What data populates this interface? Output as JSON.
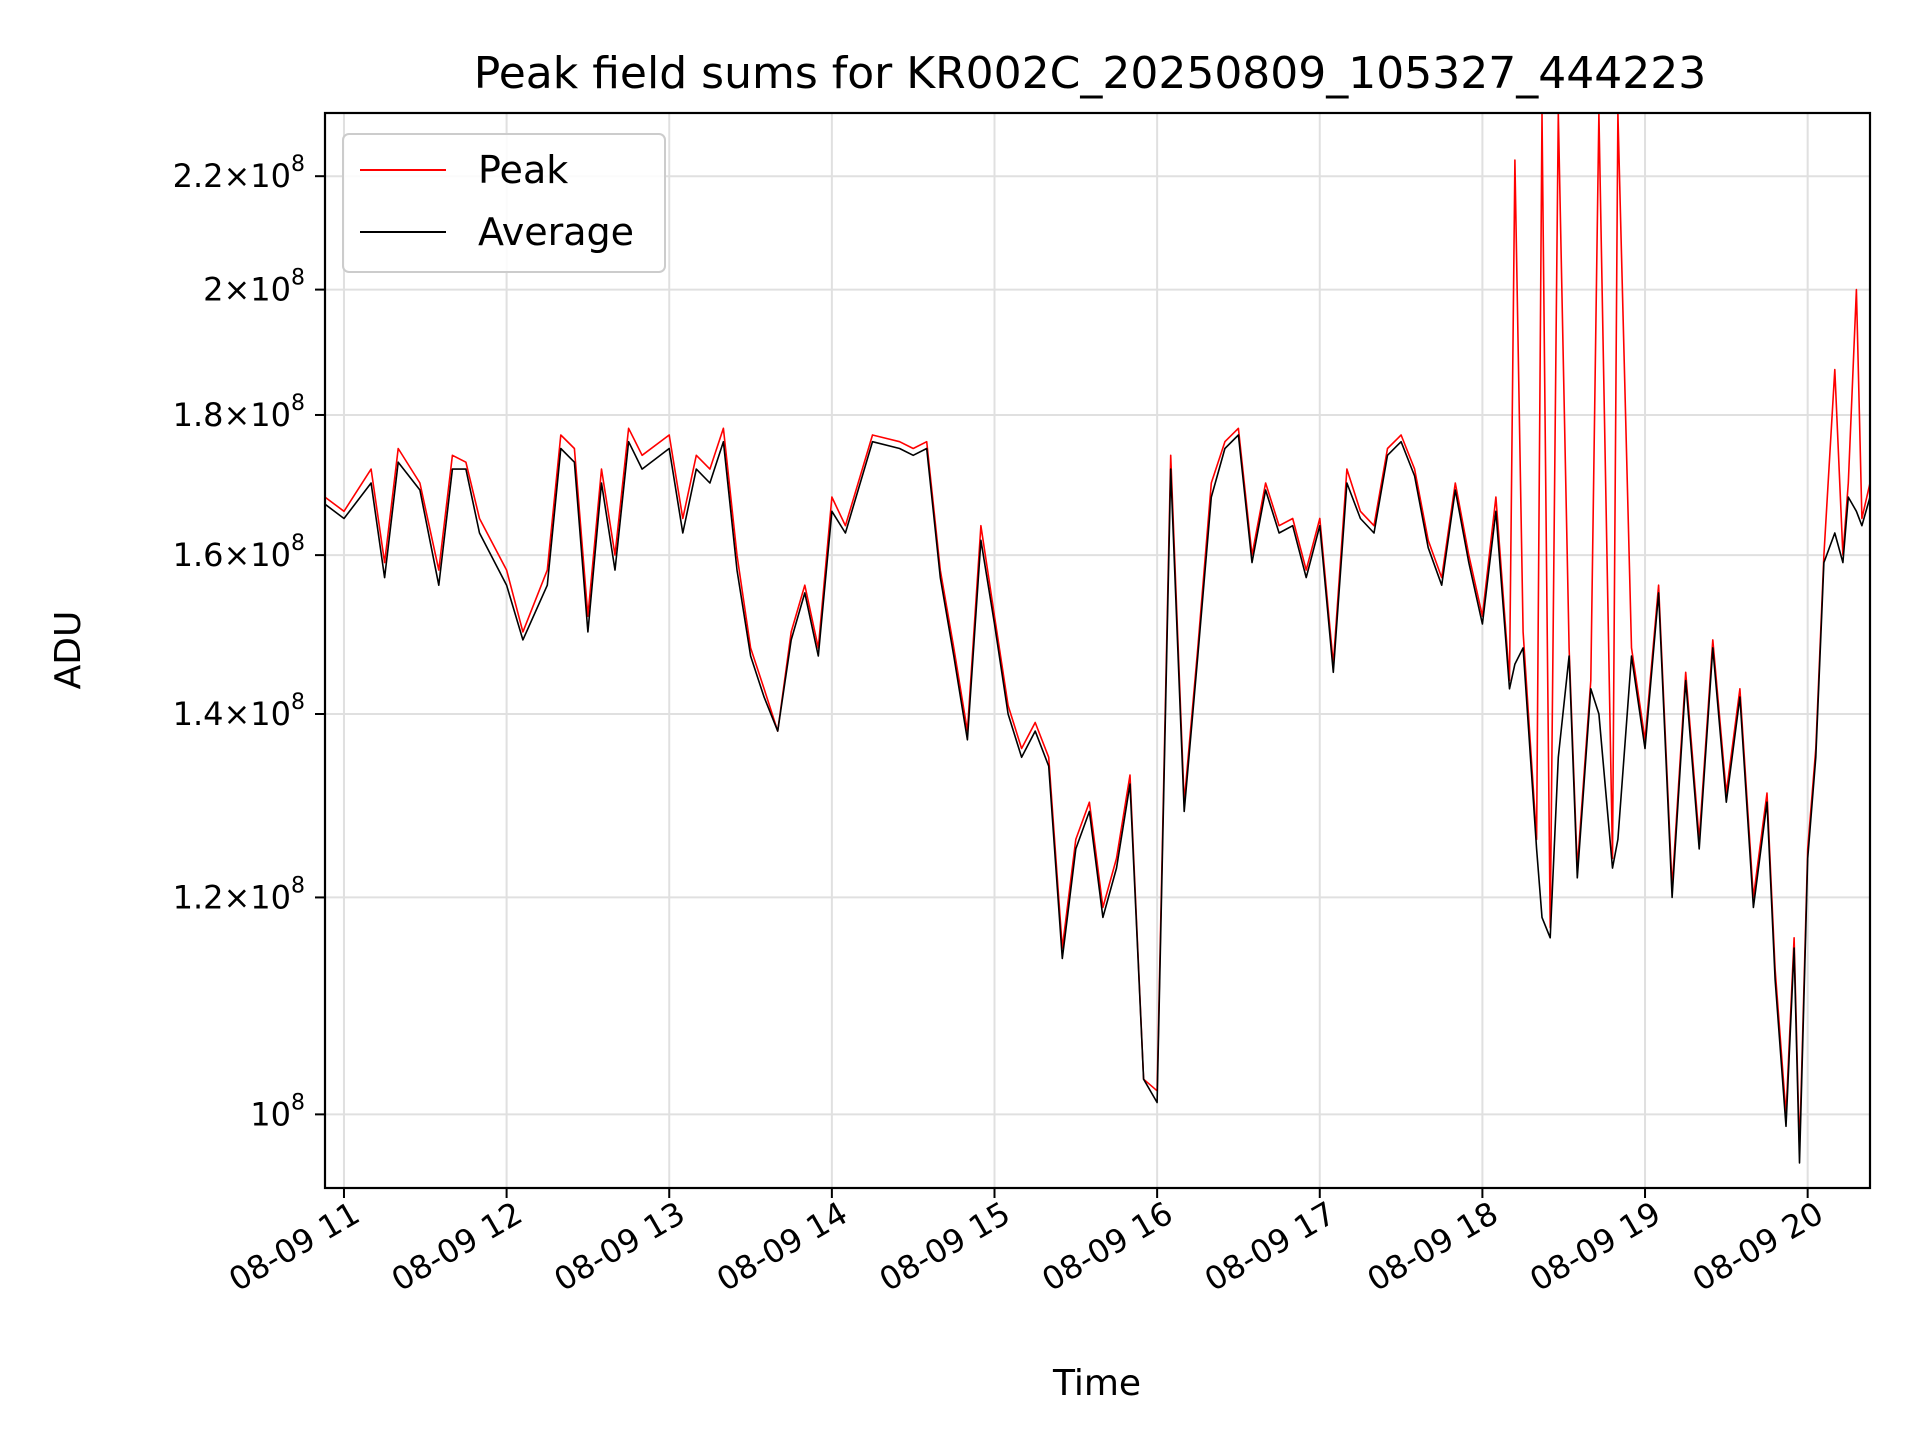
{
  "chart_data": {
    "type": "line",
    "title": "Peak field sums for KR002C_20250809_105327_444223",
    "xlabel": "Time",
    "ylabel": "ADU",
    "y_scale": "log",
    "ylim": [
      94000000,
      232000000
    ],
    "xlim": [
      "2025-08-09 10:53",
      "2025-08-09 20:23"
    ],
    "grid": true,
    "legend_position": "top-left",
    "x_ticks": [
      {
        "x": "2025-08-09 11:00",
        "label": "08-09 11"
      },
      {
        "x": "2025-08-09 12:00",
        "label": "08-09 12"
      },
      {
        "x": "2025-08-09 13:00",
        "label": "08-09 13"
      },
      {
        "x": "2025-08-09 14:00",
        "label": "08-09 14"
      },
      {
        "x": "2025-08-09 15:00",
        "label": "08-09 15"
      },
      {
        "x": "2025-08-09 16:00",
        "label": "08-09 16"
      },
      {
        "x": "2025-08-09 17:00",
        "label": "08-09 17"
      },
      {
        "x": "2025-08-09 18:00",
        "label": "08-09 18"
      },
      {
        "x": "2025-08-09 19:00",
        "label": "08-09 19"
      },
      {
        "x": "2025-08-09 20:00",
        "label": "08-09 20"
      }
    ],
    "y_ticks": [
      {
        "value": 100000000,
        "mantissa": "",
        "exp": "8"
      },
      {
        "value": 120000000,
        "mantissa": "1.2",
        "exp": "8"
      },
      {
        "value": 140000000,
        "mantissa": "1.4",
        "exp": "8"
      },
      {
        "value": 160000000,
        "mantissa": "1.6",
        "exp": "8"
      },
      {
        "value": 180000000,
        "mantissa": "1.8",
        "exp": "8"
      },
      {
        "value": 200000000,
        "mantissa": "2",
        "exp": "8"
      },
      {
        "value": 220000000,
        "mantissa": "2.2",
        "exp": "8"
      }
    ],
    "series": [
      {
        "name": "Peak",
        "color": "#ff0000",
        "x": [
          "2025-08-09 10:53",
          "2025-08-09 11:00",
          "2025-08-09 11:10",
          "2025-08-09 11:15",
          "2025-08-09 11:20",
          "2025-08-09 11:28",
          "2025-08-09 11:35",
          "2025-08-09 11:40",
          "2025-08-09 11:45",
          "2025-08-09 11:50",
          "2025-08-09 12:00",
          "2025-08-09 12:06",
          "2025-08-09 12:15",
          "2025-08-09 12:20",
          "2025-08-09 12:25",
          "2025-08-09 12:30",
          "2025-08-09 12:35",
          "2025-08-09 12:40",
          "2025-08-09 12:45",
          "2025-08-09 12:50",
          "2025-08-09 13:00",
          "2025-08-09 13:05",
          "2025-08-09 13:10",
          "2025-08-09 13:15",
          "2025-08-09 13:20",
          "2025-08-09 13:25",
          "2025-08-09 13:30",
          "2025-08-09 13:35",
          "2025-08-09 13:40",
          "2025-08-09 13:45",
          "2025-08-09 13:50",
          "2025-08-09 13:55",
          "2025-08-09 14:00",
          "2025-08-09 14:05",
          "2025-08-09 14:15",
          "2025-08-09 14:25",
          "2025-08-09 14:30",
          "2025-08-09 14:35",
          "2025-08-09 14:40",
          "2025-08-09 14:45",
          "2025-08-09 14:50",
          "2025-08-09 14:55",
          "2025-08-09 15:00",
          "2025-08-09 15:05",
          "2025-08-09 15:10",
          "2025-08-09 15:15",
          "2025-08-09 15:20",
          "2025-08-09 15:25",
          "2025-08-09 15:30",
          "2025-08-09 15:35",
          "2025-08-09 15:40",
          "2025-08-09 15:45",
          "2025-08-09 15:50",
          "2025-08-09 15:55",
          "2025-08-09 16:00",
          "2025-08-09 16:05",
          "2025-08-09 16:10",
          "2025-08-09 16:15",
          "2025-08-09 16:20",
          "2025-08-09 16:25",
          "2025-08-09 16:30",
          "2025-08-09 16:35",
          "2025-08-09 16:40",
          "2025-08-09 16:45",
          "2025-08-09 16:50",
          "2025-08-09 16:55",
          "2025-08-09 17:00",
          "2025-08-09 17:05",
          "2025-08-09 17:10",
          "2025-08-09 17:15",
          "2025-08-09 17:20",
          "2025-08-09 17:25",
          "2025-08-09 17:30",
          "2025-08-09 17:35",
          "2025-08-09 17:40",
          "2025-08-09 17:45",
          "2025-08-09 17:50",
          "2025-08-09 17:55",
          "2025-08-09 18:00",
          "2025-08-09 18:05",
          "2025-08-09 18:10",
          "2025-08-09 18:12",
          "2025-08-09 18:15",
          "2025-08-09 18:20",
          "2025-08-09 18:22",
          "2025-08-09 18:25",
          "2025-08-09 18:28",
          "2025-08-09 18:32",
          "2025-08-09 18:35",
          "2025-08-09 18:40",
          "2025-08-09 18:43",
          "2025-08-09 18:48",
          "2025-08-09 18:50",
          "2025-08-09 18:55",
          "2025-08-09 19:00",
          "2025-08-09 19:05",
          "2025-08-09 19:10",
          "2025-08-09 19:15",
          "2025-08-09 19:20",
          "2025-08-09 19:25",
          "2025-08-09 19:30",
          "2025-08-09 19:35",
          "2025-08-09 19:40",
          "2025-08-09 19:45",
          "2025-08-09 19:48",
          "2025-08-09 19:52",
          "2025-08-09 19:55",
          "2025-08-09 19:57",
          "2025-08-09 20:00",
          "2025-08-09 20:03",
          "2025-08-09 20:06",
          "2025-08-09 20:10",
          "2025-08-09 20:13",
          "2025-08-09 20:15",
          "2025-08-09 20:18",
          "2025-08-09 20:20",
          "2025-08-09 20:23"
        ],
        "values": [
          168000000,
          166000000,
          172000000,
          159000000,
          175000000,
          170000000,
          158000000,
          174000000,
          173000000,
          165000000,
          158000000,
          150000000,
          158000000,
          177000000,
          175000000,
          152000000,
          172000000,
          160000000,
          178000000,
          174000000,
          177000000,
          165000000,
          174000000,
          172000000,
          178000000,
          160000000,
          148000000,
          143000000,
          138000000,
          150000000,
          156000000,
          148000000,
          168000000,
          164000000,
          177000000,
          176000000,
          175000000,
          176000000,
          158000000,
          148000000,
          138000000,
          164000000,
          152000000,
          141000000,
          136000000,
          139000000,
          135000000,
          115000000,
          126000000,
          130000000,
          119000000,
          124000000,
          133000000,
          103000000,
          102000000,
          174000000,
          130000000,
          148000000,
          170000000,
          176000000,
          178000000,
          160000000,
          170000000,
          164000000,
          165000000,
          158000000,
          165000000,
          146000000,
          172000000,
          166000000,
          164000000,
          175000000,
          177000000,
          172000000,
          162000000,
          157000000,
          170000000,
          160000000,
          152000000,
          168000000,
          144000000,
          223000000,
          150000000,
          126000000,
          232000000,
          117000000,
          232000000,
          148000000,
          123000000,
          144000000,
          232000000,
          124000000,
          232000000,
          148000000,
          137000000,
          156000000,
          121000000,
          145000000,
          126000000,
          149000000,
          131000000,
          143000000,
          120000000,
          131000000,
          113000000,
          100000000,
          116000000,
          97000000,
          125000000,
          136000000,
          160000000,
          187000000,
          160000000,
          170000000,
          200000000,
          165000000,
          170000000
        ]
      },
      {
        "name": "Average",
        "color": "#000000",
        "x": [
          "2025-08-09 10:53",
          "2025-08-09 11:00",
          "2025-08-09 11:10",
          "2025-08-09 11:15",
          "2025-08-09 11:20",
          "2025-08-09 11:28",
          "2025-08-09 11:35",
          "2025-08-09 11:40",
          "2025-08-09 11:45",
          "2025-08-09 11:50",
          "2025-08-09 12:00",
          "2025-08-09 12:06",
          "2025-08-09 12:15",
          "2025-08-09 12:20",
          "2025-08-09 12:25",
          "2025-08-09 12:30",
          "2025-08-09 12:35",
          "2025-08-09 12:40",
          "2025-08-09 12:45",
          "2025-08-09 12:50",
          "2025-08-09 13:00",
          "2025-08-09 13:05",
          "2025-08-09 13:10",
          "2025-08-09 13:15",
          "2025-08-09 13:20",
          "2025-08-09 13:25",
          "2025-08-09 13:30",
          "2025-08-09 13:35",
          "2025-08-09 13:40",
          "2025-08-09 13:45",
          "2025-08-09 13:50",
          "2025-08-09 13:55",
          "2025-08-09 14:00",
          "2025-08-09 14:05",
          "2025-08-09 14:15",
          "2025-08-09 14:25",
          "2025-08-09 14:30",
          "2025-08-09 14:35",
          "2025-08-09 14:40",
          "2025-08-09 14:45",
          "2025-08-09 14:50",
          "2025-08-09 14:55",
          "2025-08-09 15:00",
          "2025-08-09 15:05",
          "2025-08-09 15:10",
          "2025-08-09 15:15",
          "2025-08-09 15:20",
          "2025-08-09 15:25",
          "2025-08-09 15:30",
          "2025-08-09 15:35",
          "2025-08-09 15:40",
          "2025-08-09 15:45",
          "2025-08-09 15:50",
          "2025-08-09 15:55",
          "2025-08-09 16:00",
          "2025-08-09 16:05",
          "2025-08-09 16:10",
          "2025-08-09 16:15",
          "2025-08-09 16:20",
          "2025-08-09 16:25",
          "2025-08-09 16:30",
          "2025-08-09 16:35",
          "2025-08-09 16:40",
          "2025-08-09 16:45",
          "2025-08-09 16:50",
          "2025-08-09 16:55",
          "2025-08-09 17:00",
          "2025-08-09 17:05",
          "2025-08-09 17:10",
          "2025-08-09 17:15",
          "2025-08-09 17:20",
          "2025-08-09 17:25",
          "2025-08-09 17:30",
          "2025-08-09 17:35",
          "2025-08-09 17:40",
          "2025-08-09 17:45",
          "2025-08-09 17:50",
          "2025-08-09 17:55",
          "2025-08-09 18:00",
          "2025-08-09 18:05",
          "2025-08-09 18:10",
          "2025-08-09 18:12",
          "2025-08-09 18:15",
          "2025-08-09 18:20",
          "2025-08-09 18:22",
          "2025-08-09 18:25",
          "2025-08-09 18:28",
          "2025-08-09 18:32",
          "2025-08-09 18:35",
          "2025-08-09 18:40",
          "2025-08-09 18:43",
          "2025-08-09 18:48",
          "2025-08-09 18:50",
          "2025-08-09 18:55",
          "2025-08-09 19:00",
          "2025-08-09 19:05",
          "2025-08-09 19:10",
          "2025-08-09 19:15",
          "2025-08-09 19:20",
          "2025-08-09 19:25",
          "2025-08-09 19:30",
          "2025-08-09 19:35",
          "2025-08-09 19:40",
          "2025-08-09 19:45",
          "2025-08-09 19:48",
          "2025-08-09 19:52",
          "2025-08-09 19:55",
          "2025-08-09 19:57",
          "2025-08-09 20:00",
          "2025-08-09 20:03",
          "2025-08-09 20:06",
          "2025-08-09 20:10",
          "2025-08-09 20:13",
          "2025-08-09 20:15",
          "2025-08-09 20:18",
          "2025-08-09 20:20",
          "2025-08-09 20:23"
        ],
        "values": [
          167000000,
          165000000,
          170000000,
          157000000,
          173000000,
          169000000,
          156000000,
          172000000,
          172000000,
          163000000,
          156000000,
          149000000,
          156000000,
          175000000,
          173000000,
          150000000,
          170000000,
          158000000,
          176000000,
          172000000,
          175000000,
          163000000,
          172000000,
          170000000,
          176000000,
          158000000,
          147000000,
          142000000,
          138000000,
          149000000,
          155000000,
          147000000,
          166000000,
          163000000,
          176000000,
          175000000,
          174000000,
          175000000,
          157000000,
          147000000,
          137000000,
          162000000,
          151000000,
          140000000,
          135000000,
          138000000,
          134000000,
          114000000,
          125000000,
          129000000,
          118000000,
          123000000,
          132000000,
          103000000,
          101000000,
          172000000,
          129000000,
          147000000,
          168000000,
          175000000,
          177000000,
          159000000,
          169000000,
          163000000,
          164000000,
          157000000,
          164000000,
          145000000,
          170000000,
          165000000,
          163000000,
          174000000,
          176000000,
          171000000,
          161000000,
          156000000,
          169000000,
          159000000,
          151000000,
          166000000,
          143000000,
          146000000,
          148000000,
          125000000,
          118000000,
          116000000,
          135000000,
          147000000,
          122000000,
          143000000,
          140000000,
          123000000,
          126000000,
          147000000,
          136000000,
          155000000,
          120000000,
          144000000,
          125000000,
          148000000,
          130000000,
          142000000,
          119000000,
          130000000,
          112000000,
          99000000,
          115000000,
          96000000,
          124000000,
          135000000,
          159000000,
          163000000,
          159000000,
          168000000,
          166000000,
          164000000,
          168000000
        ]
      }
    ]
  }
}
